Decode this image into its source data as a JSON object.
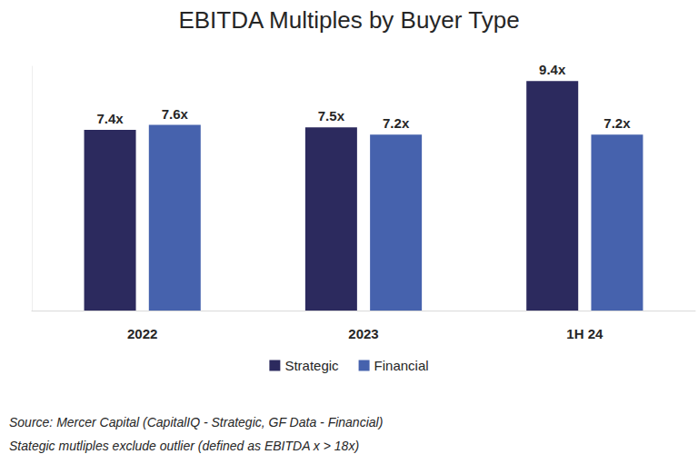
{
  "chart_data": {
    "type": "bar",
    "title": "EBITDA Multiples by Buyer Type",
    "categories": [
      "2022",
      "2023",
      "1H 24"
    ],
    "series": [
      {
        "name": "Strategic",
        "color": "#2c2a5e",
        "values": [
          7.4,
          7.5,
          9.4
        ],
        "value_labels": [
          "7.4x",
          "7.5x",
          "9.4x"
        ]
      },
      {
        "name": "Financial",
        "color": "#4662ad",
        "values": [
          7.6,
          7.2,
          7.2
        ],
        "value_labels": [
          "7.6x",
          "7.2x",
          "7.2x"
        ]
      }
    ],
    "ylim": [
      0,
      10
    ],
    "yticks": [
      0,
      10
    ],
    "grid": false,
    "legend": "bottom",
    "data_labels": true,
    "tick_labels": "x",
    "annotations": [
      "Source: Mercer Capital (CapitalIQ - Strategic, GF Data - Financial)",
      "Stategic mutliples exclude outlier (defined as EBITDA x > 18x)"
    ]
  }
}
